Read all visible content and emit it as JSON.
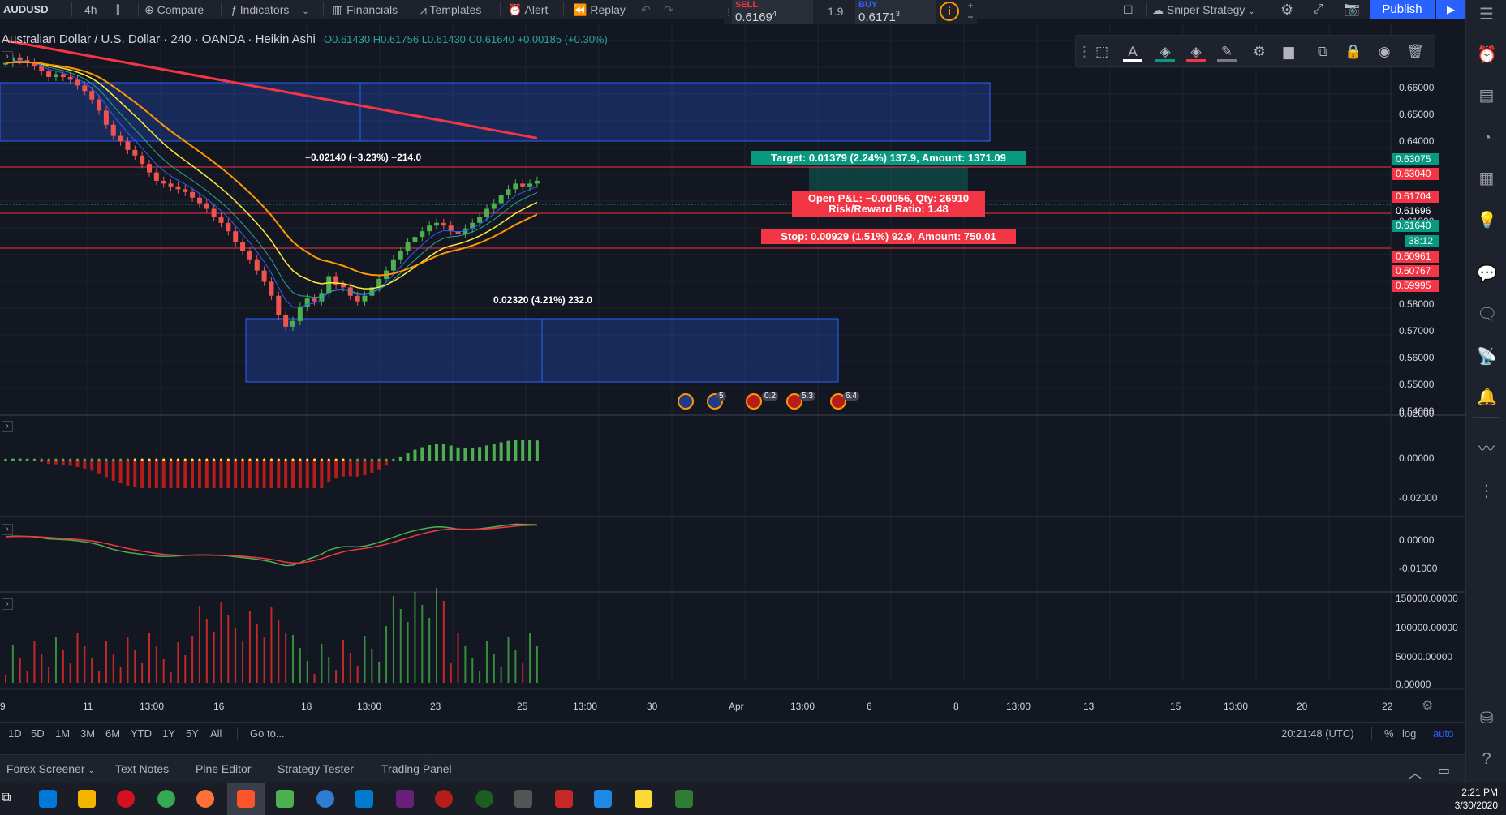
{
  "toolbar": {
    "symbol": "AUDUSD",
    "interval": "4h",
    "compare": "Compare",
    "indicators": "Indicators",
    "financials": "Financials",
    "templates": "Templates",
    "alert": "Alert",
    "replay": "Replay",
    "strategy": "Sniper Strategy",
    "publish": "Publish"
  },
  "order_panel": {
    "sell_label": "SELL",
    "sell_price": "0.6169",
    "sell_sup": "4",
    "spread": "1.9",
    "buy_label": "BUY",
    "buy_price": "0.6171",
    "buy_sup": "3"
  },
  "legend": {
    "title": "Australian Dollar / U.S. Dollar · 240 · OANDA · Heikin Ashi",
    "values": "O0.61430 H0.61756 L0.61430 C0.61640 +0.00185 (+0.30%)"
  },
  "chart_data": {
    "type": "candlestick",
    "price_axis": {
      "ticks": [
        "0.66000",
        "0.65000",
        "0.64000",
        "0.62000",
        "0.61000",
        "0.58000",
        "0.57000",
        "0.56000",
        "0.55000",
        "0.54000"
      ],
      "ylim": [
        0.535,
        0.668
      ]
    },
    "price_badges": [
      {
        "value": "0.63075",
        "color": "#089981"
      },
      {
        "value": "0.63040",
        "color": "#f23645"
      },
      {
        "value": "0.61704",
        "color": "#f23645"
      },
      {
        "value": "0.61696",
        "color": "#131722"
      },
      {
        "value": "0.61640",
        "color": "#089981"
      },
      {
        "value": "38:12",
        "color": "#089981"
      },
      {
        "value": "0.60961",
        "color": "#f23645"
      },
      {
        "value": "0.60767",
        "color": "#f23645"
      },
      {
        "value": "0.59995",
        "color": "#f23645"
      }
    ],
    "oscillator1_ticks": [
      "0.02000",
      "0.00000",
      "-0.02000"
    ],
    "oscillator2_ticks": [
      "0.00000",
      "-0.01000"
    ],
    "volume_ticks": [
      "150000.00000",
      "100000.00000",
      "50000.00000",
      "0.00000"
    ],
    "time_ticks": [
      "9",
      "11",
      "13:00",
      "16",
      "18",
      "13:00",
      "23",
      "25",
      "13:00",
      "30",
      "Apr",
      "13:00",
      "6",
      "8",
      "13:00",
      "13",
      "15",
      "13:00",
      "20",
      "22"
    ],
    "close_series": [
      0.66,
      0.662,
      0.661,
      0.66,
      0.659,
      0.657,
      0.655,
      0.656,
      0.655,
      0.654,
      0.652,
      0.65,
      0.647,
      0.643,
      0.638,
      0.634,
      0.632,
      0.629,
      0.627,
      0.624,
      0.621,
      0.618,
      0.617,
      0.616,
      0.615,
      0.614,
      0.612,
      0.61,
      0.608,
      0.605,
      0.603,
      0.6,
      0.596,
      0.593,
      0.59,
      0.586,
      0.582,
      0.577,
      0.57,
      0.566,
      0.568,
      0.573,
      0.576,
      0.575,
      0.578,
      0.584,
      0.581,
      0.58,
      0.577,
      0.575,
      0.577,
      0.58,
      0.583,
      0.586,
      0.59,
      0.593,
      0.596,
      0.598,
      0.6,
      0.602,
      0.603,
      0.602,
      0.6,
      0.599,
      0.601,
      0.603,
      0.605,
      0.608,
      0.61,
      0.613,
      0.615,
      0.617,
      0.616,
      0.617,
      0.618
    ]
  },
  "annotations": {
    "measure_down": "−0.02140 (−3.23%) −214.0",
    "measure_up": "0.02320 (4.21%) 232.0",
    "target": "Target: 0.01379 (2.24%) 137.9, Amount: 1371.09",
    "open_pnl": "Open P&L: −0.00056, Qty: 26910",
    "risk_reward": "Risk/Reward Ratio: 1.48",
    "stop": "Stop: 0.00929 (1.51%) 92.9, Amount: 750.01",
    "event_counts": [
      "5",
      "0.2",
      "5.3",
      "6.4"
    ]
  },
  "time_ranges": [
    "1D",
    "5D",
    "1M",
    "3M",
    "6M",
    "YTD",
    "1Y",
    "5Y",
    "All"
  ],
  "goto": "Go to...",
  "clock": "20:21:48 (UTC)",
  "scale_opts": [
    "%",
    "log",
    "auto"
  ],
  "bottom_tabs": [
    "Forex Screener",
    "Text Notes",
    "Pine Editor",
    "Strategy Tester",
    "Trading Panel"
  ],
  "taskbar": {
    "time": "2:21 PM",
    "date": "3/30/2020"
  }
}
